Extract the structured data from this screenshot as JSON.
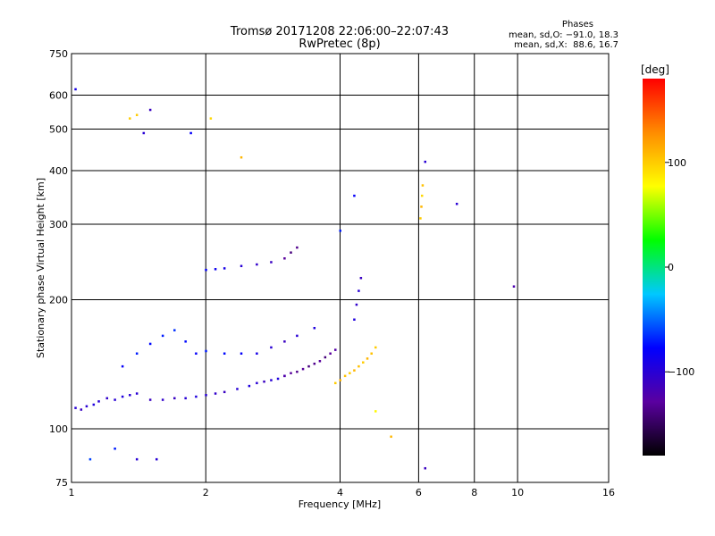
{
  "header": {
    "title": "Tromsø 20171208 22:06:00–22:07:43",
    "subtitle": "RwPretec (8p)"
  },
  "phase_info": {
    "heading": "Phases",
    "line_o": "mean, sd,O: −91.0, 18.3",
    "line_x": "mean, sd,X:  88.6, 16.7"
  },
  "colorbar": {
    "label": "[deg]",
    "min": -180,
    "max": 180,
    "ticks": [
      {
        "value": 100,
        "label": "100"
      },
      {
        "value": 0,
        "label": "0"
      },
      {
        "value": -100,
        "label": "−100"
      }
    ],
    "colors": [
      "#000000",
      "#5a00a0",
      "#0000ff",
      "#00c8ff",
      "#00ff00",
      "#ffff00",
      "#ff8c00",
      "#ff0000"
    ]
  },
  "chart_data": {
    "type": "scatter",
    "title": "Tromsø 20171208 22:06:00–22:07:43",
    "subtitle": "RwPretec (8p)",
    "xlabel": "Frequency [MHz]",
    "ylabel": "Stationary phase Virtual Height [km]",
    "x_scale": "log",
    "y_scale": "log",
    "xlim": [
      1,
      16
    ],
    "ylim": [
      75,
      750
    ],
    "x_ticks": [
      {
        "v": 1,
        "l": "1"
      },
      {
        "v": 2,
        "l": "2"
      },
      {
        "v": 4,
        "l": "4"
      },
      {
        "v": 6,
        "l": "6"
      },
      {
        "v": 8,
        "l": "8"
      },
      {
        "v": 10,
        "l": "10"
      },
      {
        "v": 16,
        "l": "16"
      }
    ],
    "y_ticks": [
      {
        "v": 75,
        "l": "75"
      },
      {
        "v": 100,
        "l": "100"
      },
      {
        "v": 200,
        "l": "200"
      },
      {
        "v": 300,
        "l": "300"
      },
      {
        "v": 400,
        "l": "400"
      },
      {
        "v": 500,
        "l": "500"
      },
      {
        "v": 600,
        "l": "600"
      },
      {
        "v": 750,
        "l": "750"
      }
    ],
    "grid": true,
    "color_variable": "phase [deg]",
    "series": [
      {
        "x": [
          1.02,
          1.05,
          1.08,
          1.12,
          1.15,
          1.2,
          1.25,
          1.3,
          1.35,
          1.4,
          1.5,
          1.6,
          1.7,
          1.8,
          1.9,
          2.0,
          2.1,
          2.2,
          2.35,
          2.5,
          2.6,
          2.7,
          2.8,
          2.9,
          3.0
        ],
        "y": [
          112,
          111,
          113,
          114,
          116,
          118,
          117,
          119,
          120,
          121,
          117,
          117,
          118,
          118,
          119,
          120,
          121,
          122,
          124,
          126,
          128,
          129,
          130,
          131,
          133
        ],
        "phase": [
          -100,
          -110,
          -100,
          -95,
          -100,
          -105,
          -100,
          -95,
          -100,
          -100,
          -110,
          -105,
          -110,
          -100,
          -95,
          -100,
          -105,
          -110,
          -100,
          -95,
          -100,
          -110,
          -100,
          -95,
          -100
        ]
      },
      {
        "x": [
          3.0,
          3.1,
          3.2,
          3.3,
          3.4,
          3.5,
          3.6,
          3.7,
          3.8,
          3.9
        ],
        "y": [
          133,
          135,
          136,
          138,
          140,
          142,
          144,
          147,
          150,
          153
        ],
        "phase": [
          -125,
          -130,
          -135,
          -130,
          -140,
          -135,
          -130,
          -140,
          -130,
          -125
        ]
      },
      {
        "x": [
          3.9,
          4.0,
          4.1,
          4.2,
          4.3,
          4.4,
          4.5,
          4.6,
          4.7,
          4.8
        ],
        "y": [
          128,
          130,
          133,
          135,
          137,
          140,
          143,
          146,
          150,
          155
        ],
        "phase": [
          100,
          110,
          105,
          100,
          110,
          105,
          100,
          110,
          105,
          100
        ]
      },
      {
        "x": [
          1.3,
          1.4,
          1.5,
          1.6,
          1.7,
          1.8,
          1.9,
          2.0,
          2.2,
          2.4,
          2.6,
          2.8,
          3.0,
          3.2,
          3.5
        ],
        "y": [
          140,
          150,
          158,
          165,
          170,
          160,
          150,
          152,
          150,
          150,
          150,
          155,
          160,
          165,
          172
        ],
        "phase": [
          -80,
          -70,
          -75,
          -70,
          -65,
          -75,
          -80,
          -70,
          -75,
          -80,
          -90,
          -100,
          -110,
          -100,
          -95
        ]
      },
      {
        "x": [
          2.0,
          2.1,
          2.2,
          2.4,
          2.6,
          2.8,
          3.0,
          3.1,
          3.2
        ],
        "y": [
          235,
          236,
          237,
          240,
          242,
          245,
          250,
          258,
          265
        ],
        "phase": [
          -80,
          -85,
          -90,
          -100,
          -105,
          -110,
          -130,
          -140,
          -135
        ]
      },
      {
        "x": [
          6.05,
          6.08,
          6.1,
          6.12
        ],
        "y": [
          310,
          330,
          350,
          370
        ],
        "phase": [
          100,
          110,
          95,
          105
        ]
      },
      {
        "x": [
          4.3,
          4.35,
          4.4,
          4.45
        ],
        "y": [
          180,
          195,
          210,
          225
        ],
        "phase": [
          -95,
          -105,
          -100,
          -110
        ]
      },
      {
        "x": [
          1.02,
          1.4,
          1.45,
          1.5,
          1.85,
          2.05,
          1.35,
          2.4,
          6.2,
          7.3,
          9.8,
          4.3,
          4.0,
          1.1,
          1.25,
          1.4,
          1.55,
          6.2,
          5.2,
          4.8
        ],
        "y": [
          620,
          540,
          490,
          555,
          490,
          530,
          530,
          430,
          420,
          335,
          215,
          350,
          290,
          85,
          90,
          85,
          85,
          81,
          96,
          110
        ],
        "phase": [
          -90,
          100,
          -100,
          -110,
          -80,
          95,
          100,
          110,
          -100,
          -100,
          -120,
          -80,
          -70,
          -60,
          -70,
          -100,
          -100,
          -110,
          110,
          80
        ]
      }
    ]
  }
}
